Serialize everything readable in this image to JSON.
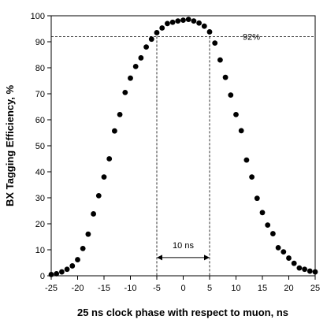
{
  "chart_data": {
    "type": "scatter",
    "xlabel": "25 ns clock phase with respect to muon, ns",
    "ylabel": "BX Tagging Efficiency, %",
    "xlim": [
      -25,
      25
    ],
    "ylim": [
      0,
      100
    ],
    "x_ticks": [
      -25,
      -20,
      -15,
      -10,
      -5,
      0,
      5,
      10,
      15,
      20,
      25
    ],
    "y_ticks": [
      0,
      10,
      20,
      30,
      40,
      50,
      60,
      70,
      80,
      90,
      100
    ],
    "grid": false,
    "legend": "none",
    "marker_color": "#000000",
    "series": [
      {
        "x": [
          -25,
          -24,
          -23,
          -22,
          -21,
          -20,
          -19,
          -18,
          -17,
          -16,
          -15,
          -14,
          -13,
          -12,
          -11,
          -10,
          -9,
          -8,
          -7,
          -6,
          -5,
          -4,
          -3,
          -2,
          -1,
          0,
          1,
          2,
          3,
          4,
          5,
          6,
          7,
          8,
          9,
          10,
          11,
          12,
          13,
          14,
          15,
          16,
          17,
          18,
          19,
          20,
          21,
          22,
          23,
          24,
          25
        ],
        "y": [
          0.5,
          0.8,
          1.5,
          2.5,
          3.8,
          6.2,
          10.5,
          16.0,
          23.8,
          30.8,
          38.0,
          45.0,
          55.7,
          62.0,
          70.5,
          76.0,
          80.5,
          83.8,
          88.0,
          91.0,
          93.5,
          95.3,
          97.0,
          97.5,
          98.0,
          98.3,
          98.6,
          98.0,
          97.2,
          96.0,
          93.8,
          89.5,
          83.0,
          76.3,
          69.5,
          62.0,
          55.8,
          44.5,
          38.0,
          29.8,
          24.3,
          19.5,
          16.2,
          10.8,
          9.2,
          6.8,
          4.8,
          3.0,
          2.5,
          1.8,
          1.5
        ]
      }
    ],
    "annotations": {
      "threshold_label": "92%",
      "threshold_value": 92,
      "window_label": "10 ns",
      "window_range": [
        -5,
        5
      ],
      "window_arrow_y": 7
    }
  }
}
